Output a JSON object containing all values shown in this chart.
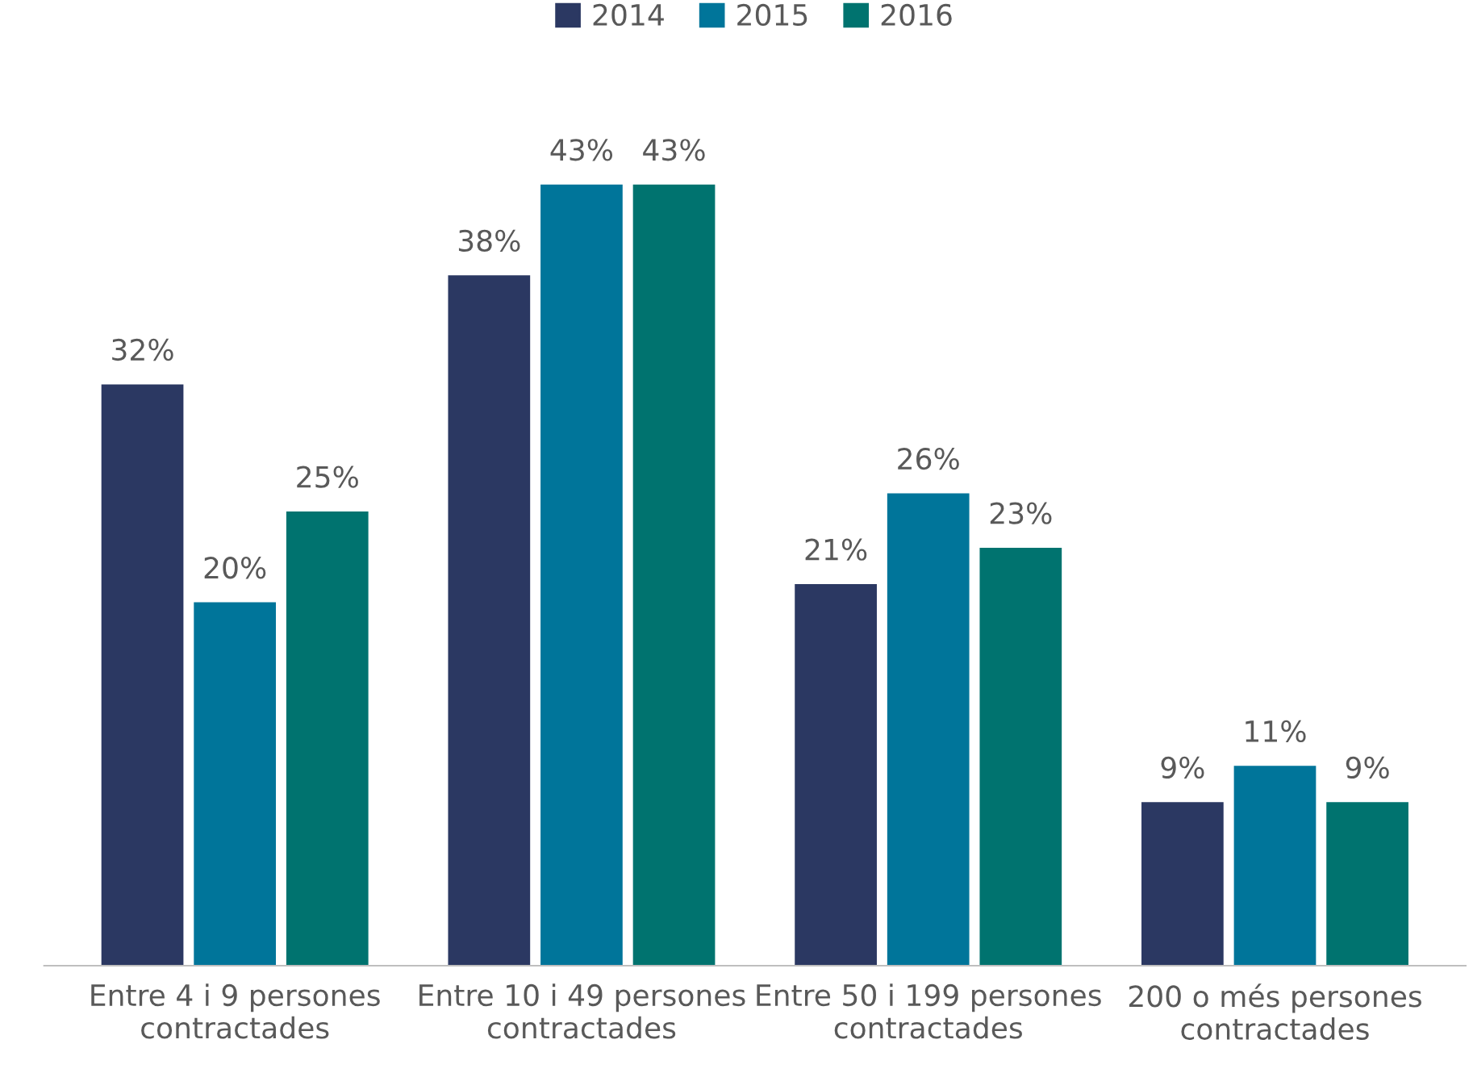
{
  "chart_data": {
    "type": "bar",
    "categories": [
      "Entre 4 i 9 persones\ncontractades",
      "Entre 10 i 49 persones\ncontractades",
      "Entre 50 i 199 persones\ncontractades",
      "200 o més persones\ncontractades"
    ],
    "series": [
      {
        "name": "2014",
        "color": "#2b3862",
        "values": [
          32,
          38,
          21,
          9
        ],
        "value_labels": [
          "32%",
          "38%",
          "21%",
          "9%"
        ]
      },
      {
        "name": "2015",
        "color": "#00759a",
        "values": [
          20,
          43,
          26,
          11
        ],
        "value_labels": [
          "20%",
          "43%",
          "26%",
          "11%"
        ]
      },
      {
        "name": "2016",
        "color": "#00736f",
        "values": [
          25,
          43,
          23,
          9
        ],
        "value_labels": [
          "25%",
          "43%",
          "23%",
          "9%"
        ]
      }
    ],
    "legend": "top",
    "grid": false
  }
}
